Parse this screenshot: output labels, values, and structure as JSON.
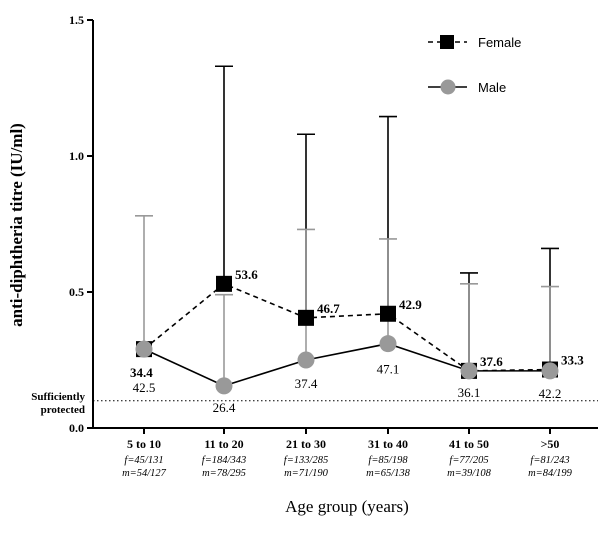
{
  "chart_data": {
    "type": "line",
    "xlabel": "Age group (years)",
    "ylabel": "anti-diphtheria titre (IU/ml)",
    "ylim": [
      0,
      1.5
    ],
    "yticks": [
      "0.0",
      "0.5",
      "1.0",
      "1.5"
    ],
    "categories": [
      "5 to 10",
      "11 to 20",
      "21 to 30",
      "31 to 40",
      "41 to 50",
      ">50"
    ],
    "category_sublabels": [
      {
        "f": "f=45/131",
        "m": "m=54/127"
      },
      {
        "f": "f=184/343",
        "m": "m=78/295"
      },
      {
        "f": "f=133/285",
        "m": "m=71/190"
      },
      {
        "f": "f=85/198",
        "m": "m=65/138"
      },
      {
        "f": "f=77/205",
        "m": "m=39/108"
      },
      {
        "f": "f=81/243",
        "m": "m=84/199"
      }
    ],
    "reference_line": {
      "value": 0.1,
      "label_line1": "Sufficiently",
      "label_line2": "protected"
    },
    "legend_position": "top-right",
    "series": [
      {
        "name": "Female",
        "color": "#000000",
        "line": "dashed",
        "marker": "square",
        "values": [
          0.29,
          0.53,
          0.405,
          0.42,
          0.21,
          0.215
        ],
        "error_upper": [
          0.29,
          1.33,
          1.08,
          1.145,
          0.57,
          0.66
        ],
        "labels": [
          "34.4",
          "53.6",
          "46.7",
          "42.9",
          "37.6",
          "33.3"
        ]
      },
      {
        "name": "Male",
        "color": "#999999",
        "line": "solid",
        "marker": "circle",
        "values": [
          0.29,
          0.155,
          0.25,
          0.31,
          0.21,
          0.21
        ],
        "error_upper": [
          0.78,
          0.49,
          0.73,
          0.695,
          0.53,
          0.52
        ],
        "labels": [
          "42.5",
          "26.4",
          "37.4",
          "47.1",
          "36.1",
          "42.2"
        ]
      }
    ]
  }
}
